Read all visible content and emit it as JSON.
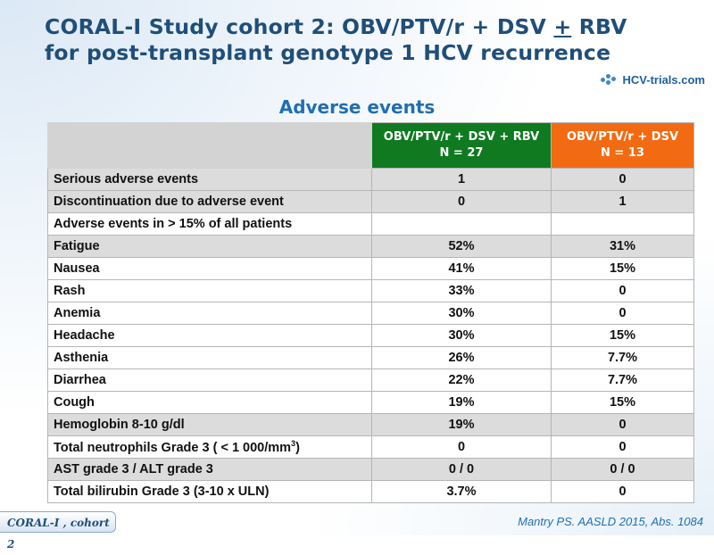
{
  "title": {
    "line1_a": "CORAL-I Study cohort 2: OBV/PTV/r + DSV ",
    "line1_plus": "+",
    "line1_b": " RBV",
    "line2": "for post-transplant genotype 1 HCV recurrence"
  },
  "logo": {
    "text": "HCV-trials.com"
  },
  "subtitle": "Adverse events",
  "table": {
    "col1_line1": "OBV/PTV/r + DSV + RBV",
    "col1_line2": "N = 27",
    "col2_line1": "OBV/PTV/r + DSV",
    "col2_line2": "N = 13",
    "rows": [
      {
        "label": "Serious adverse events",
        "v1": "1",
        "v2": "0"
      },
      {
        "label": "Discontinuation due to adverse event",
        "v1": "0",
        "v2": "1"
      },
      {
        "label": "Adverse events in > 15% of all patients",
        "v1": "",
        "v2": ""
      },
      {
        "label": "Fatigue",
        "v1": "52%",
        "v2": "31%"
      },
      {
        "label": "Nausea",
        "v1": "41%",
        "v2": "15%"
      },
      {
        "label": "Rash",
        "v1": "33%",
        "v2": "0"
      },
      {
        "label": "Anemia",
        "v1": "30%",
        "v2": "0"
      },
      {
        "label": "Headache",
        "v1": "30%",
        "v2": "15%"
      },
      {
        "label": "Asthenia",
        "v1": "26%",
        "v2": "7.7%"
      },
      {
        "label": "Diarrhea",
        "v1": "22%",
        "v2": "7.7%"
      },
      {
        "label": "Cough",
        "v1": "19%",
        "v2": "15%"
      },
      {
        "label": "Hemoglobin 8-10 g/dl",
        "v1": "19%",
        "v2": "0"
      },
      {
        "label": "Total neutrophils Grade 3 ( < 1 000/mm",
        "label_sup": "3",
        "label_tail": ")",
        "v1": "0",
        "v2": "0"
      },
      {
        "label": "AST grade 3 / ALT grade 3",
        "v1": "0 / 0",
        "v2": "0 / 0"
      },
      {
        "label": "Total bilirubin Grade 3 (3-10 x ULN)",
        "v1": "3.7%",
        "v2": "0"
      }
    ]
  },
  "footer": {
    "tag": "CORAL-I , cohort 2",
    "source": "Mantry PS. AASLD 2015, Abs. 1084"
  },
  "colors": {
    "title": "#1f4e79",
    "green": "#0f7a1f",
    "orange": "#f26b12"
  }
}
